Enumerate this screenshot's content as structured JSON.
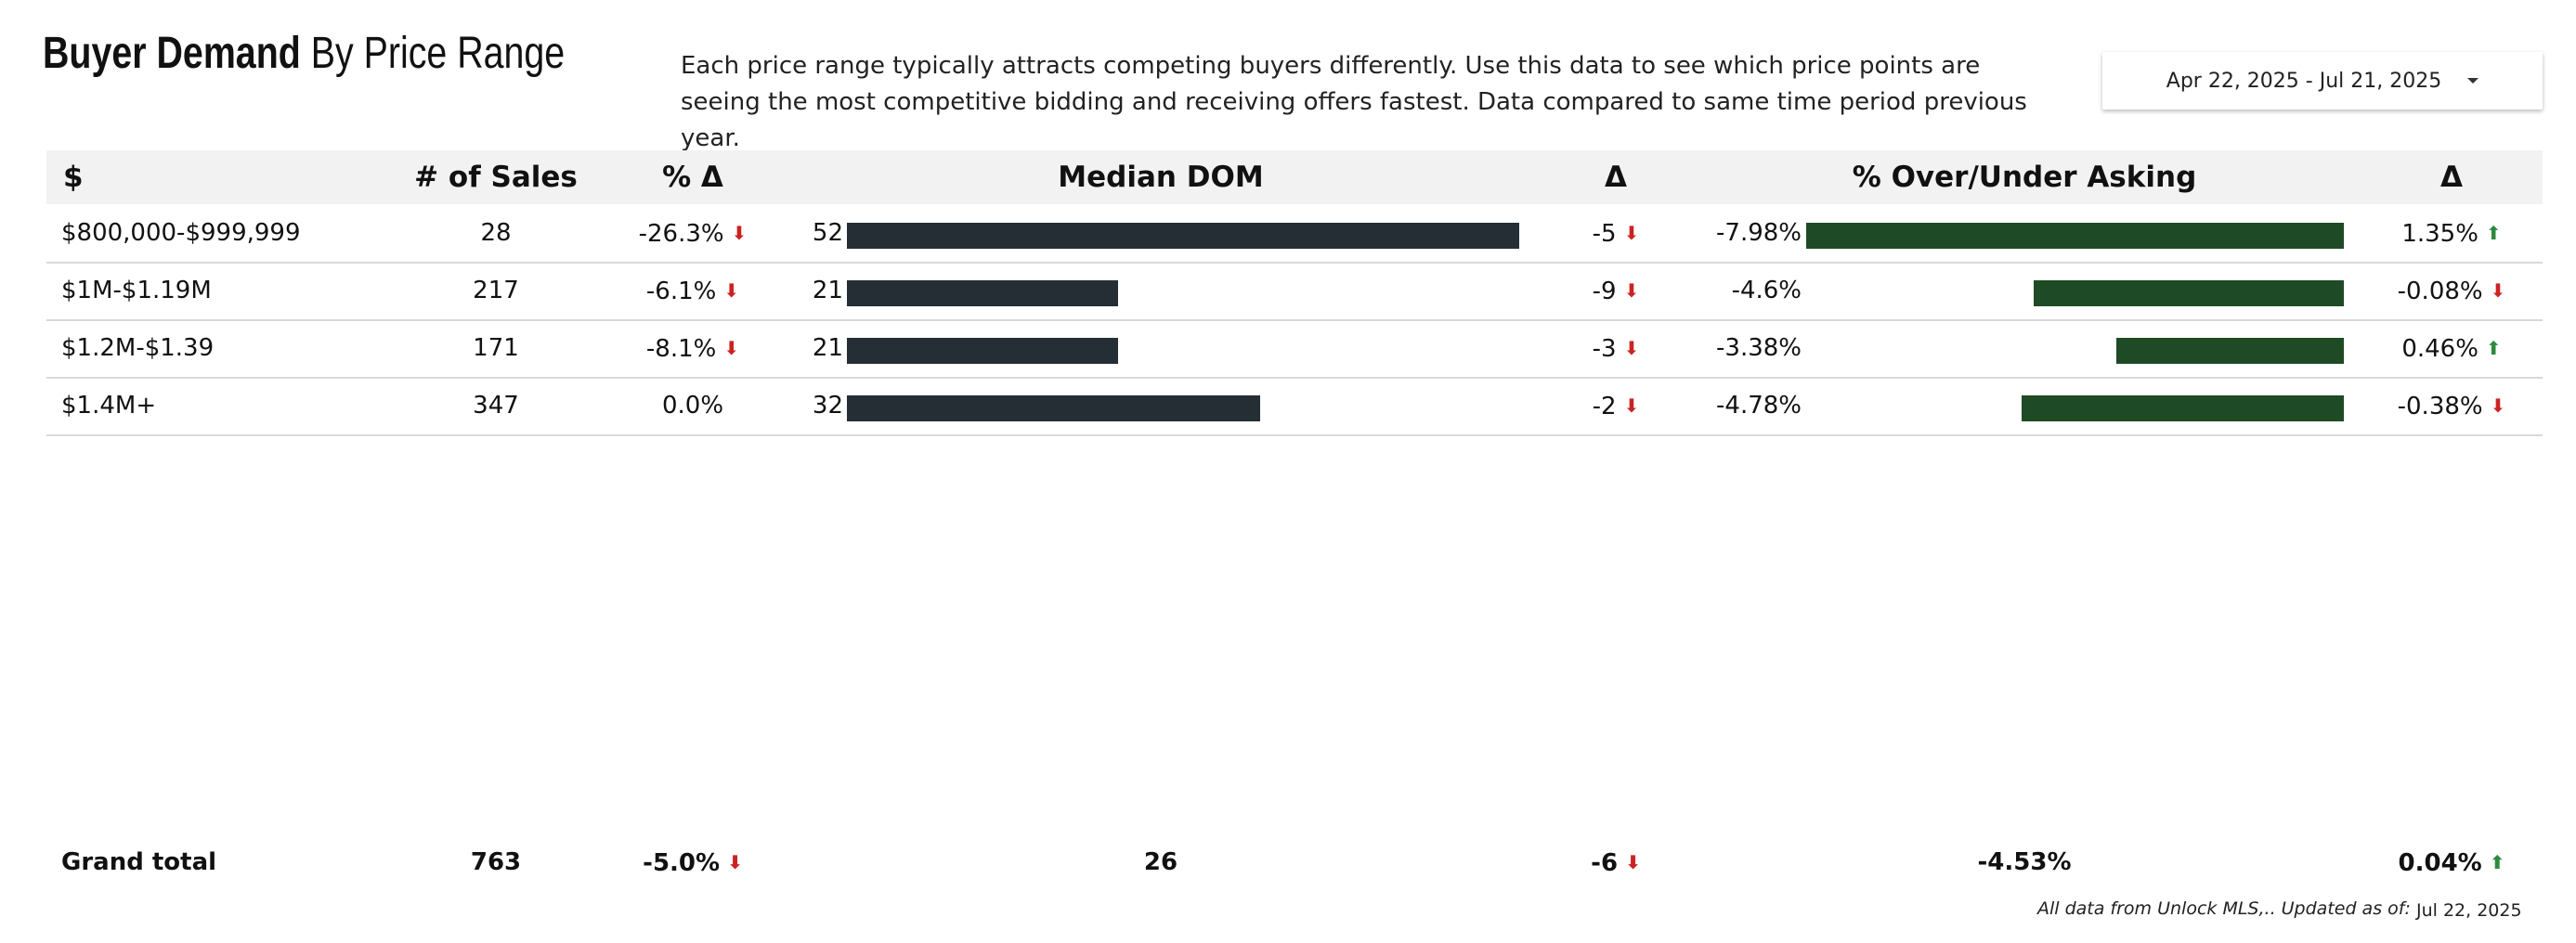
{
  "header": {
    "title_bold": "Buyer Demand",
    "title_rest": " By Price Range",
    "description": "Each price range typically attracts competing buyers differently.  Use this data to see which price points are seeing the most competitive bidding and receiving offers fastest.  Data compared to same time period previous year.",
    "date_range": "Apr 22, 2025 - Jul 21, 2025"
  },
  "table": {
    "columns": [
      "$",
      "# of Sales",
      "% Δ",
      "Median DOM",
      "Δ",
      "% Over/Under Asking",
      "Δ"
    ],
    "rows": [
      {
        "range": "$800,000-$999,999",
        "sales": "28",
        "pct_change": "-26.3%",
        "pct_dir": "down",
        "dom": "52",
        "dom_value": 52,
        "dom_delta": "-5",
        "dom_dir": "down",
        "asking": "-7.98%",
        "asking_value": -7.98,
        "asking_delta": "1.35%",
        "asking_dir": "up"
      },
      {
        "range": "$1M-$1.19M",
        "sales": "217",
        "pct_change": "-6.1%",
        "pct_dir": "down",
        "dom": "21",
        "dom_value": 21,
        "dom_delta": "-9",
        "dom_dir": "down",
        "asking": "-4.6%",
        "asking_value": -4.6,
        "asking_delta": "-0.08%",
        "asking_dir": "down"
      },
      {
        "range": "$1.2M-$1.39",
        "sales": "171",
        "pct_change": "-8.1%",
        "pct_dir": "down",
        "dom": "21",
        "dom_value": 21,
        "dom_delta": "-3",
        "dom_dir": "down",
        "asking": "-3.38%",
        "asking_value": -3.38,
        "asking_delta": "0.46%",
        "asking_dir": "up"
      },
      {
        "range": "$1.4M+",
        "sales": "347",
        "pct_change": "0.0%",
        "pct_dir": "none",
        "dom": "32",
        "dom_value": 32,
        "dom_delta": "-2",
        "dom_dir": "down",
        "asking": "-4.78%",
        "asking_value": -4.78,
        "asking_delta": "-0.38%",
        "asking_dir": "down"
      }
    ],
    "total": {
      "label": "Grand total",
      "sales": "763",
      "pct_change": "-5.0%",
      "pct_dir": "down",
      "dom": "26",
      "dom_delta": "-6",
      "dom_dir": "down",
      "asking": "-4.53%",
      "asking_delta": "0.04%",
      "asking_dir": "up"
    }
  },
  "footer": {
    "source_note": "All data from Unlock MLS,.. Updated as of:",
    "updated_date": "Jul 22, 2025"
  },
  "colors": {
    "dom_bar": "#252e35",
    "asking_bar": "#1e4b25",
    "arrow_down": "#cc2222",
    "arrow_up": "#2e8b3e",
    "header_bg": "#f2f2f2"
  }
}
